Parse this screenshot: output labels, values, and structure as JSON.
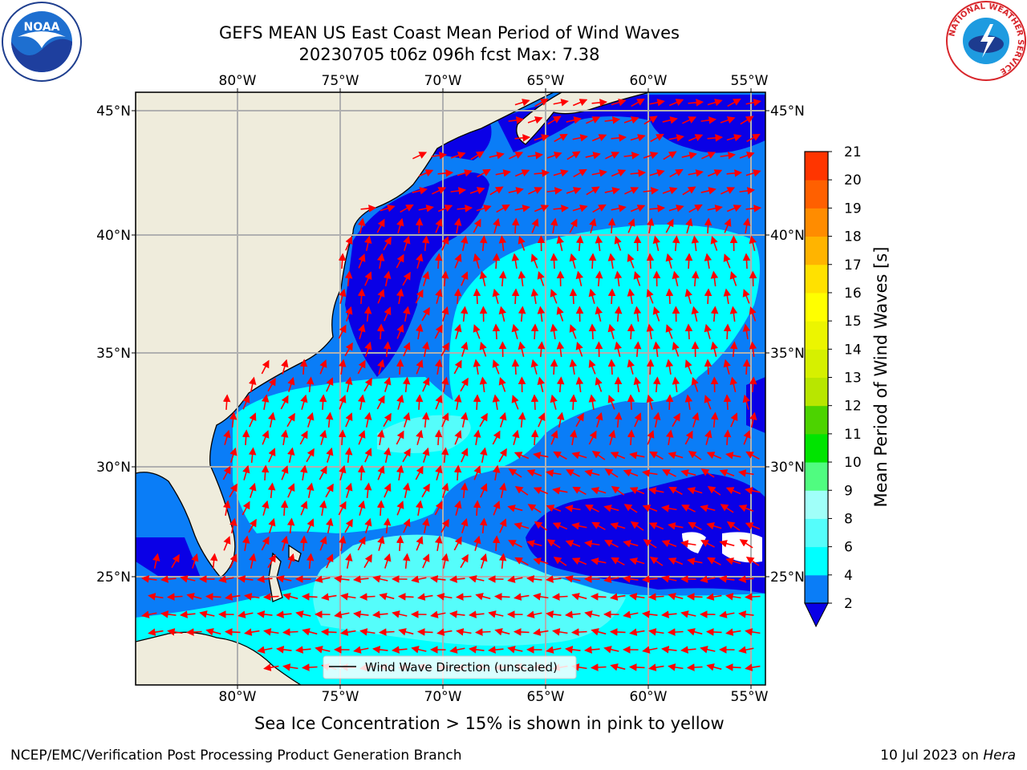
{
  "header": {
    "title_line1": "GEFS MEAN US East Coast Mean Period of Wind Waves",
    "title_line2": "20230705 t06z 096h fcst   Max: 7.38"
  },
  "logos": {
    "noaa": {
      "text": "NOAA",
      "ring_text": "NATIONAL OCEANIC AND ATMOSPHERIC ADMINISTRATION • U.S. DEPARTMENT OF COMMERCE •"
    },
    "nws": {
      "ring_text": "NATIONAL WEATHER SERVICE"
    }
  },
  "map": {
    "lon_labels": [
      "80°W",
      "75°W",
      "70°W",
      "65°W",
      "60°W",
      "55°W"
    ],
    "lat_labels": [
      "45°N",
      "40°N",
      "35°N",
      "30°N",
      "25°N"
    ],
    "legend_label": "Wind Wave Direction (unscaled)",
    "colors": {
      "land": "#efecdc",
      "ocean_2_4": "#0a7df7",
      "ocean_lt_2": "#0a00e6",
      "ocean_4_6": "#00ffff",
      "ocean_6_8": "#55fdfb",
      "arrow": "#ff0000",
      "grid": "#b0b0b0"
    }
  },
  "colorbar": {
    "label": "Mean Period of Wind Waves [s]",
    "ticks": [
      "2",
      "4",
      "6",
      "8",
      "9",
      "10",
      "11",
      "12",
      "13",
      "14",
      "15",
      "16",
      "17",
      "18",
      "19",
      "20",
      "21"
    ],
    "colors": [
      "#0a7df7",
      "#00ffff",
      "#55fdfb",
      "#a0fff9",
      "#50fc80",
      "#00e400",
      "#4cd300",
      "#b8e600",
      "#d6f000",
      "#ecf500",
      "#ffff00",
      "#ffe100",
      "#ffb400",
      "#ff8c00",
      "#ff6000",
      "#ff3500",
      "#ff0000"
    ],
    "under_color": "#0a00e6"
  },
  "caption": "Sea Ice Concentration > 15% is shown in pink to yellow",
  "footer": {
    "left": "NCEP/EMC/Verification Post Processing Product Generation Branch",
    "date": "10 Jul 2023 on ",
    "machine": "Hera"
  }
}
